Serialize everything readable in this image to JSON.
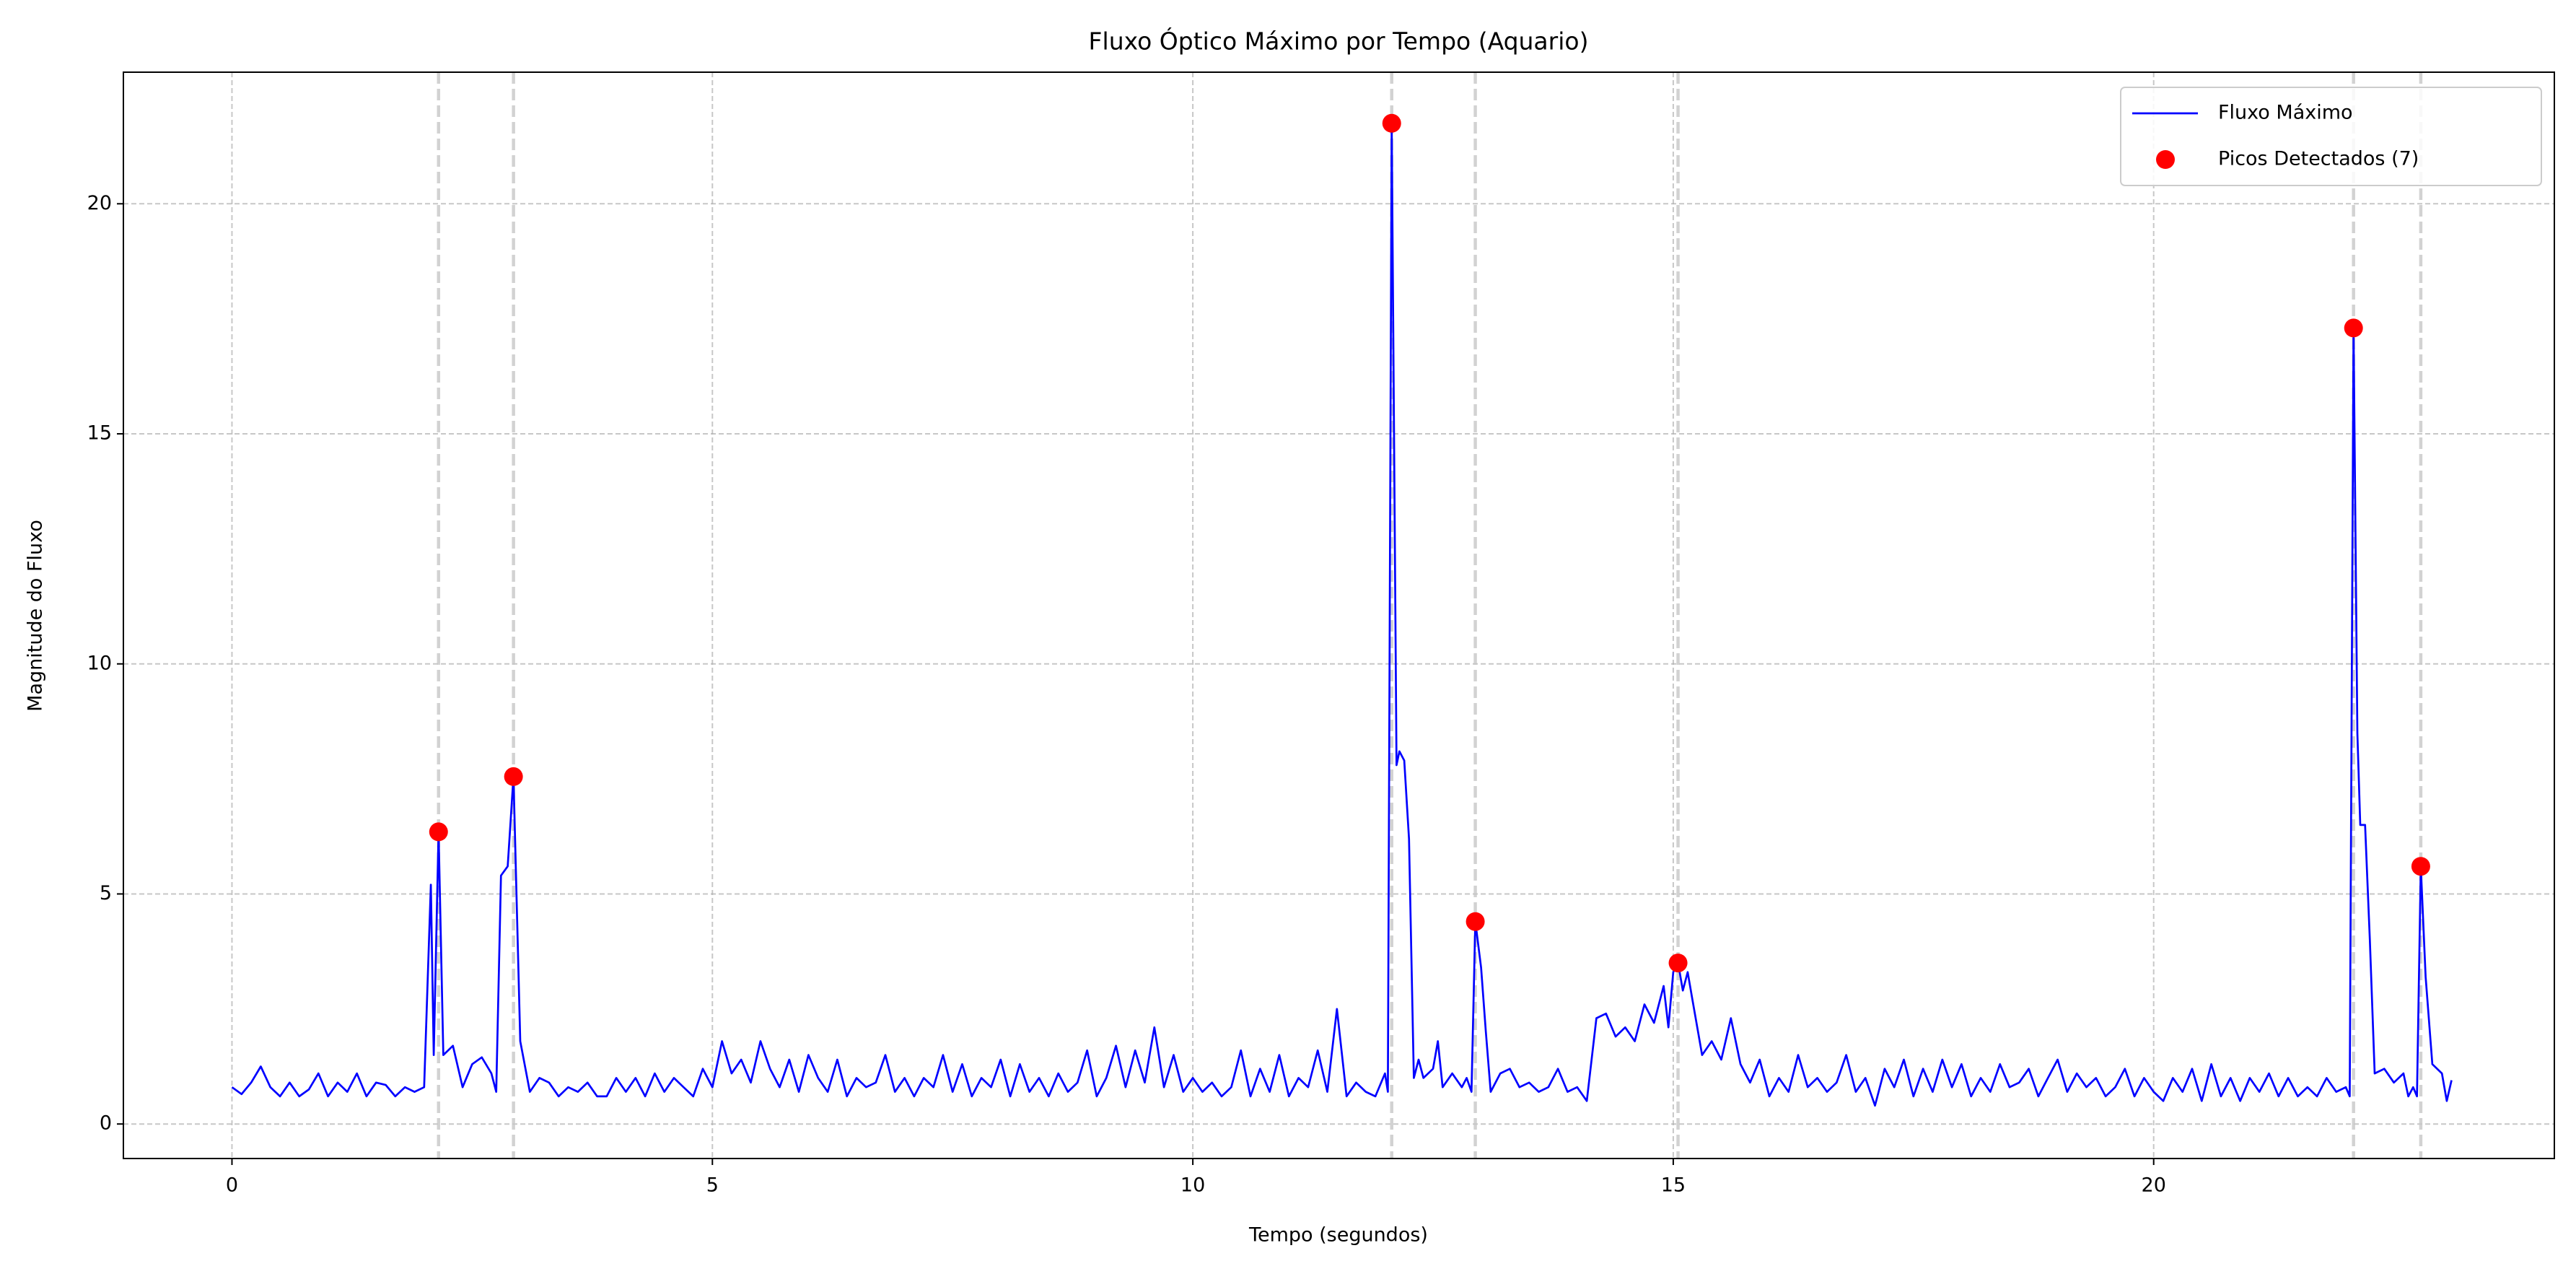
{
  "chart_data": {
    "type": "line",
    "title": "Fluxo Óptico Máximo por Tempo (Aquario)",
    "x_label": "Tempo (segundos)",
    "y_label": "Magnitude do Fluxo",
    "xlim": [
      -1.13,
      24.17
    ],
    "ylim": [
      -0.75,
      22.86
    ],
    "xticks": [
      0,
      5,
      10,
      15,
      20
    ],
    "yticks": [
      0,
      5,
      10,
      15,
      20
    ],
    "grid": true,
    "legend": "upper right",
    "series": [
      {
        "name": "Fluxo Máximo",
        "type": "line",
        "color": "#0000ff",
        "x": [
          0.0,
          0.1,
          0.2,
          0.3,
          0.4,
          0.5,
          0.6,
          0.7,
          0.8,
          0.9,
          1.0,
          1.1,
          1.2,
          1.3,
          1.4,
          1.5,
          1.6,
          1.7,
          1.8,
          1.9,
          2.0,
          2.07,
          2.1,
          2.15,
          2.2,
          2.3,
          2.4,
          2.5,
          2.6,
          2.7,
          2.75,
          2.8,
          2.87,
          2.93,
          3.0,
          3.1,
          3.2,
          3.3,
          3.4,
          3.5,
          3.6,
          3.7,
          3.8,
          3.9,
          4.0,
          4.1,
          4.2,
          4.3,
          4.4,
          4.5,
          4.6,
          4.7,
          4.8,
          4.9,
          5.0,
          5.1,
          5.2,
          5.3,
          5.4,
          5.5,
          5.6,
          5.7,
          5.8,
          5.9,
          6.0,
          6.1,
          6.2,
          6.3,
          6.4,
          6.5,
          6.6,
          6.7,
          6.8,
          6.9,
          7.0,
          7.1,
          7.2,
          7.3,
          7.4,
          7.5,
          7.6,
          7.7,
          7.8,
          7.9,
          8.0,
          8.1,
          8.2,
          8.3,
          8.4,
          8.5,
          8.6,
          8.7,
          8.8,
          8.9,
          9.0,
          9.1,
          9.2,
          9.3,
          9.4,
          9.5,
          9.6,
          9.7,
          9.8,
          9.9,
          10.0,
          10.1,
          10.2,
          10.3,
          10.4,
          10.5,
          10.6,
          10.7,
          10.8,
          10.9,
          11.0,
          11.1,
          11.2,
          11.3,
          11.4,
          11.5,
          11.6,
          11.7,
          11.8,
          11.9,
          12.0,
          12.03,
          12.07,
          12.12,
          12.15,
          12.2,
          12.25,
          12.3,
          12.35,
          12.4,
          12.5,
          12.55,
          12.6,
          12.7,
          12.8,
          12.85,
          12.9,
          12.94,
          13.0,
          13.05,
          13.1,
          13.2,
          13.3,
          13.4,
          13.5,
          13.6,
          13.7,
          13.8,
          13.9,
          14.0,
          14.1,
          14.2,
          14.3,
          14.4,
          14.5,
          14.6,
          14.7,
          14.8,
          14.9,
          14.95,
          15.0,
          15.05,
          15.1,
          15.15,
          15.2,
          15.3,
          15.4,
          15.5,
          15.6,
          15.7,
          15.8,
          15.9,
          16.0,
          16.1,
          16.2,
          16.3,
          16.4,
          16.5,
          16.6,
          16.7,
          16.8,
          16.9,
          17.0,
          17.1,
          17.2,
          17.3,
          17.4,
          17.5,
          17.6,
          17.7,
          17.8,
          17.9,
          18.0,
          18.1,
          18.2,
          18.3,
          18.4,
          18.5,
          18.6,
          18.7,
          18.8,
          18.9,
          19.0,
          19.1,
          19.2,
          19.3,
          19.4,
          19.5,
          19.6,
          19.7,
          19.8,
          19.9,
          20.0,
          20.1,
          20.2,
          20.3,
          20.4,
          20.5,
          20.6,
          20.7,
          20.8,
          20.9,
          21.0,
          21.1,
          21.2,
          21.3,
          21.4,
          21.5,
          21.6,
          21.7,
          21.8,
          21.9,
          22.0,
          22.04,
          22.08,
          22.12,
          22.15,
          22.2,
          22.25,
          22.3,
          22.4,
          22.5,
          22.6,
          22.65,
          22.7,
          22.74,
          22.78,
          22.83,
          22.9,
          23.0,
          23.05,
          23.1
        ],
        "values": [
          0.8,
          0.65,
          0.9,
          1.25,
          0.8,
          0.6,
          0.9,
          0.6,
          0.75,
          1.1,
          0.6,
          0.9,
          0.7,
          1.1,
          0.6,
          0.9,
          0.85,
          0.6,
          0.8,
          0.7,
          0.8,
          5.2,
          1.5,
          6.35,
          1.5,
          1.7,
          0.8,
          1.3,
          1.45,
          1.1,
          0.7,
          5.4,
          5.6,
          7.55,
          1.8,
          0.7,
          1.0,
          0.9,
          0.6,
          0.8,
          0.7,
          0.9,
          0.6,
          0.6,
          1.0,
          0.7,
          1.0,
          0.6,
          1.1,
          0.7,
          1.0,
          0.8,
          0.6,
          1.2,
          0.8,
          1.8,
          1.1,
          1.4,
          0.9,
          1.8,
          1.2,
          0.8,
          1.4,
          0.7,
          1.5,
          1.0,
          0.7,
          1.4,
          0.6,
          1.0,
          0.8,
          0.9,
          1.5,
          0.7,
          1.0,
          0.6,
          1.0,
          0.8,
          1.5,
          0.7,
          1.3,
          0.6,
          1.0,
          0.8,
          1.4,
          0.6,
          1.3,
          0.7,
          1.0,
          0.6,
          1.1,
          0.7,
          0.9,
          1.6,
          0.6,
          1.0,
          1.7,
          0.8,
          1.6,
          0.9,
          2.1,
          0.8,
          1.5,
          0.7,
          1.0,
          0.7,
          0.9,
          0.6,
          0.8,
          1.6,
          0.6,
          1.2,
          0.7,
          1.5,
          0.6,
          1.0,
          0.8,
          1.6,
          0.7,
          2.5,
          0.6,
          0.9,
          0.7,
          0.6,
          1.1,
          0.7,
          21.75,
          7.8,
          8.1,
          7.9,
          6.2,
          1.0,
          1.4,
          1.0,
          1.2,
          1.8,
          0.8,
          1.1,
          0.8,
          1.0,
          0.7,
          4.4,
          3.4,
          2.0,
          0.7,
          1.1,
          1.2,
          0.8,
          0.9,
          0.7,
          0.8,
          1.2,
          0.7,
          0.8,
          0.5,
          2.3,
          2.4,
          1.9,
          2.1,
          1.8,
          2.6,
          2.2,
          3.0,
          2.1,
          3.3,
          3.5,
          2.9,
          3.3,
          2.7,
          1.5,
          1.8,
          1.4,
          2.3,
          1.3,
          0.9,
          1.4,
          0.6,
          1.0,
          0.7,
          1.5,
          0.8,
          1.0,
          0.7,
          0.9,
          1.5,
          0.7,
          1.0,
          0.4,
          1.2,
          0.8,
          1.4,
          0.6,
          1.2,
          0.7,
          1.4,
          0.8,
          1.3,
          0.6,
          1.0,
          0.7,
          1.3,
          0.8,
          0.9,
          1.2,
          0.6,
          1.0,
          1.4,
          0.7,
          1.1,
          0.8,
          1.0,
          0.6,
          0.8,
          1.2,
          0.6,
          1.0,
          0.7,
          0.5,
          1.0,
          0.7,
          1.2,
          0.5,
          1.3,
          0.6,
          1.0,
          0.5,
          1.0,
          0.7,
          1.1,
          0.6,
          1.0,
          0.6,
          0.8,
          0.6,
          1.0,
          0.7,
          0.8,
          0.6,
          17.3,
          8.5,
          6.5,
          6.5,
          4.0,
          1.1,
          1.2,
          0.9,
          1.1,
          0.6,
          0.8,
          0.6,
          5.6,
          3.2,
          1.3,
          1.1,
          0.5,
          0.95
        ]
      },
      {
        "name": "Picos Detectados (7)",
        "type": "scatter",
        "color": "#ff0000",
        "x": [
          2.15,
          2.93,
          12.07,
          12.94,
          15.05,
          22.08,
          22.78
        ],
        "values": [
          6.35,
          7.55,
          21.75,
          4.4,
          3.5,
          17.3,
          5.6
        ]
      }
    ]
  }
}
